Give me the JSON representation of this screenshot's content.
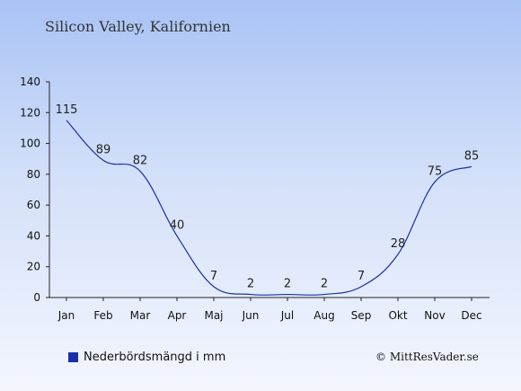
{
  "chart_data": {
    "type": "line",
    "title": "Silicon Valley, Kalifornien",
    "categories": [
      "Jan",
      "Feb",
      "Mar",
      "Apr",
      "Maj",
      "Jun",
      "Jul",
      "Aug",
      "Sep",
      "Okt",
      "Nov",
      "Dec"
    ],
    "series": [
      {
        "name": "Nederbördsmängd i mm",
        "values": [
          115,
          89,
          82,
          40,
          7,
          2,
          2,
          2,
          7,
          28,
          75,
          85
        ],
        "color": "#1a2fa8"
      }
    ],
    "ylim": [
      0,
      140
    ],
    "yticks": [
      0,
      20,
      40,
      60,
      80,
      100,
      120,
      140
    ],
    "grid": false,
    "legend": "bottom-left"
  },
  "copyright": "© MittResVader.se"
}
